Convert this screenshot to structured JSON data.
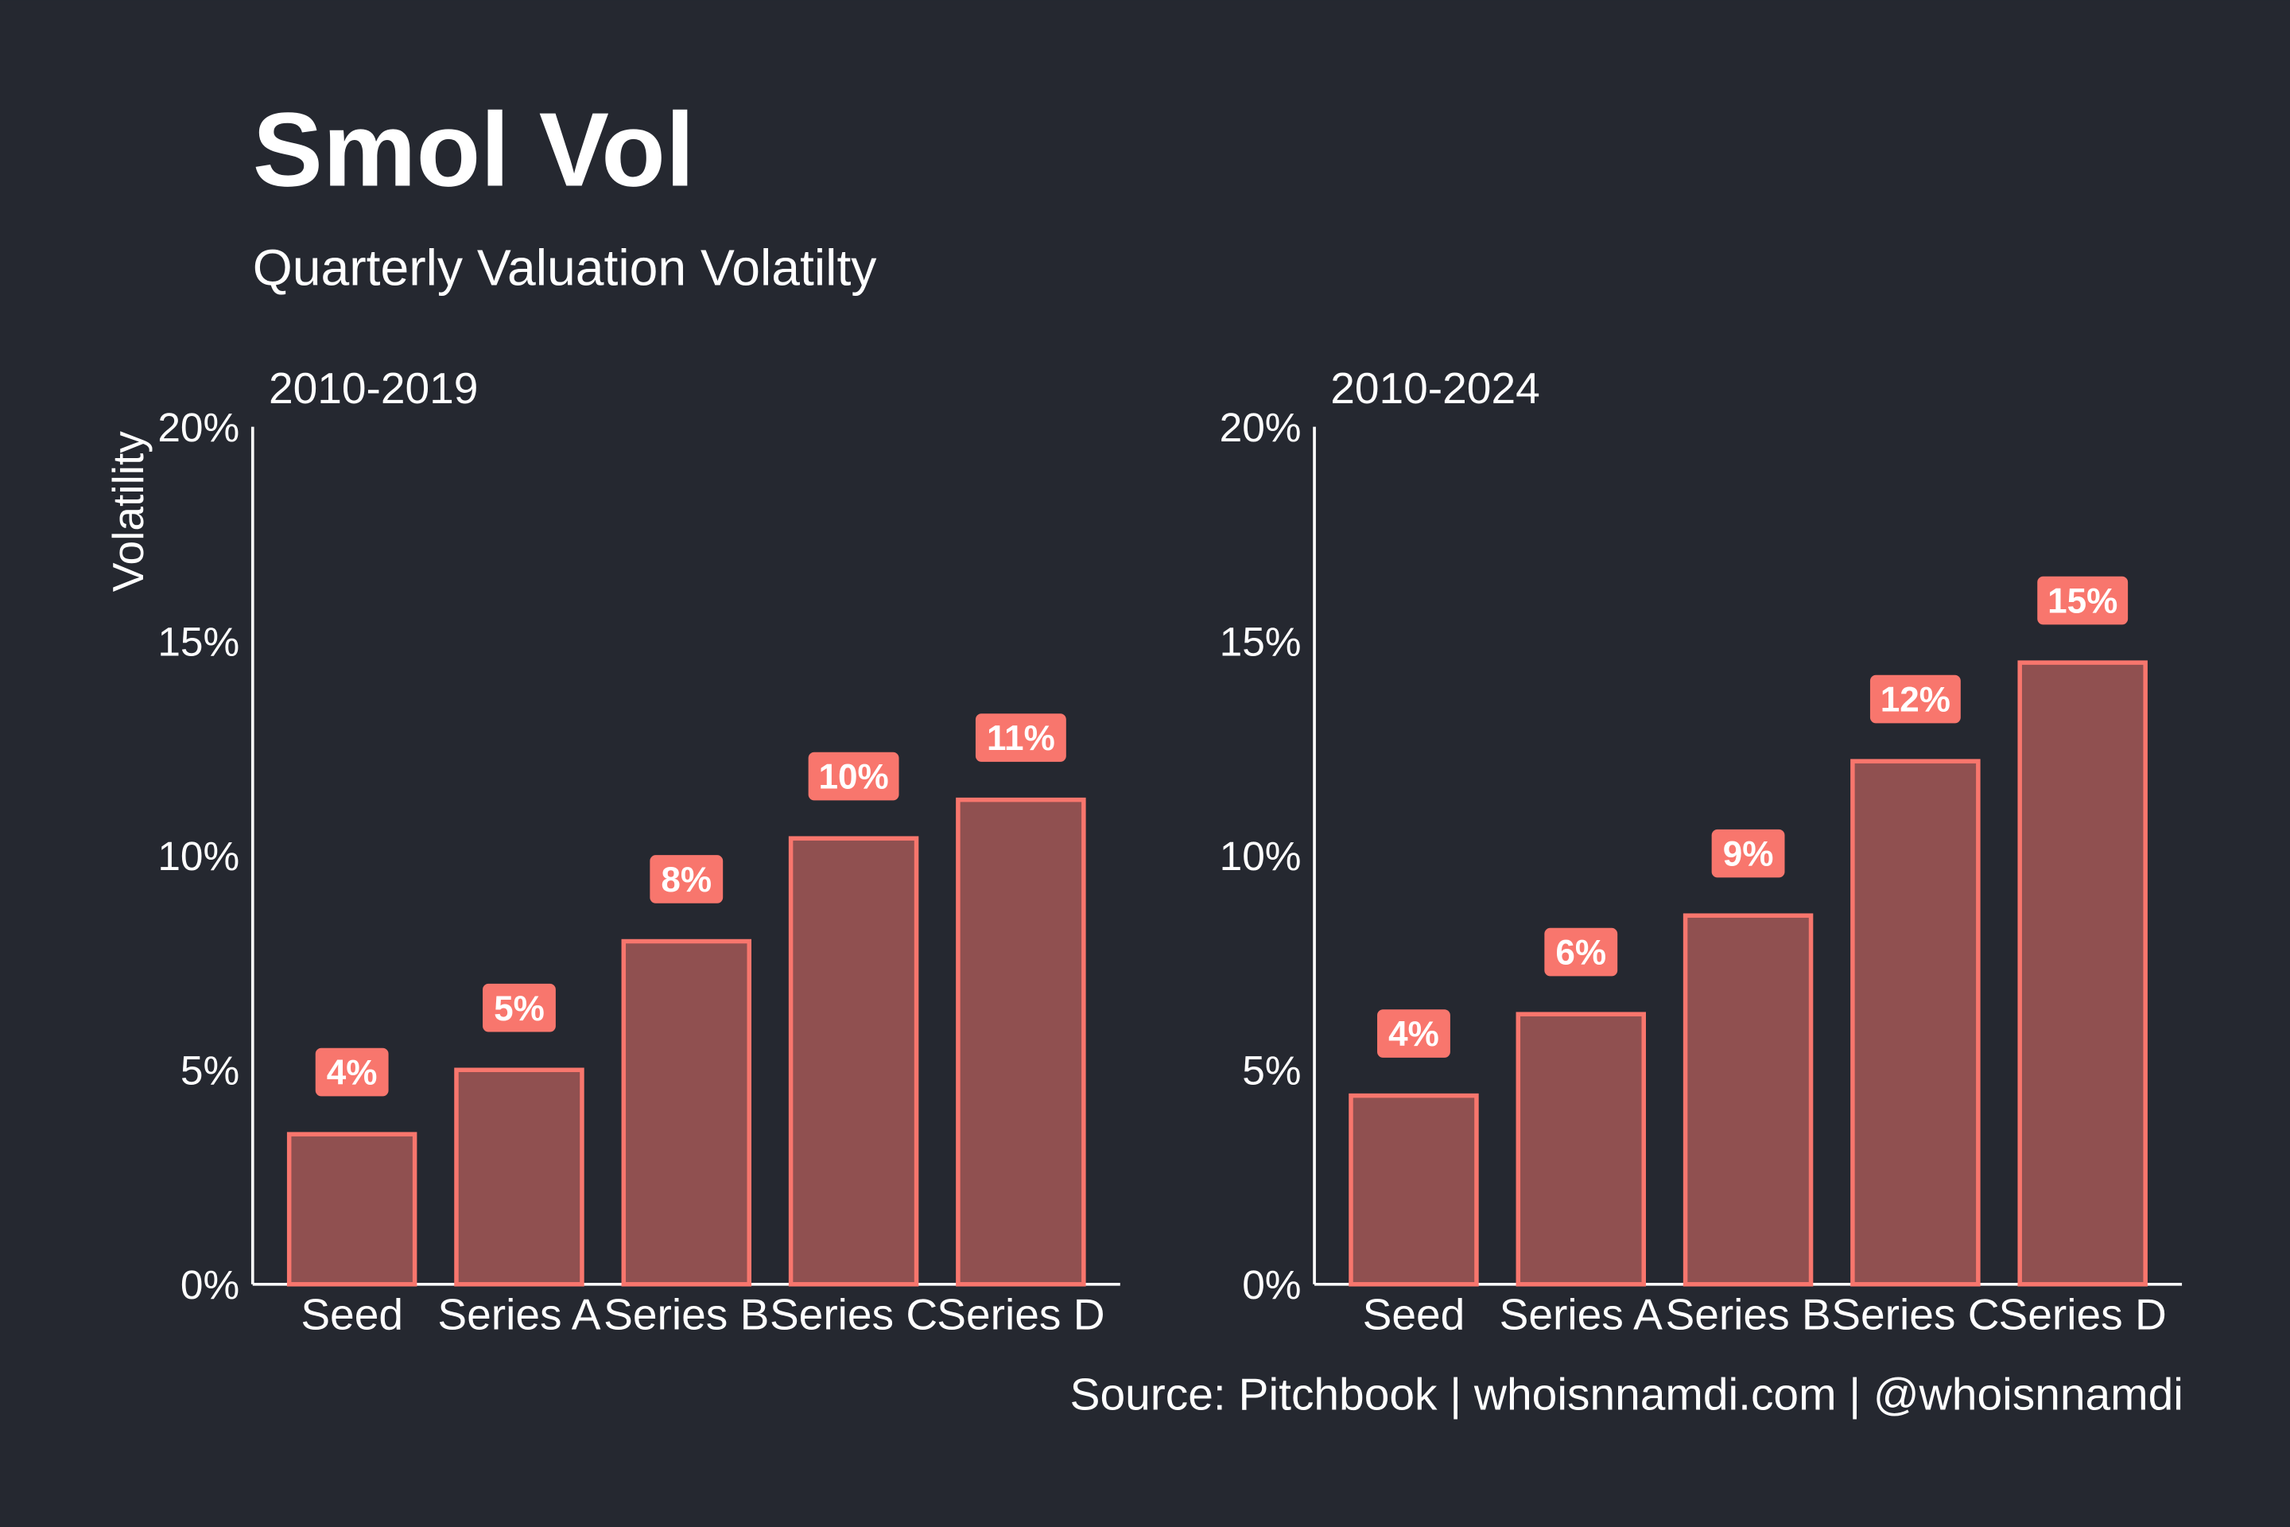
{
  "title": "Smol Vol",
  "subtitle": "Quarterly Valuation Volatilty",
  "source": "Source: Pitchbook | whoisnnamdi.com | @whoisnnamdi",
  "colors": {
    "background": "#252830",
    "bar_fill": "#905050",
    "bar_stroke": "#F8766D",
    "label_bg": "#F8766D",
    "text": "#FFFFFF"
  },
  "chart_data": [
    {
      "type": "bar",
      "title": "2010-2019",
      "ylabel": "Volatility",
      "xlabel": "",
      "ylim": [
        0,
        20
      ],
      "yticks": [
        "0%",
        "5%",
        "10%",
        "15%",
        "20%"
      ],
      "grid": false,
      "categories": [
        "Seed",
        "Series A",
        "Series B",
        "Series C",
        "Series D"
      ],
      "values": [
        3.5,
        5.0,
        8.0,
        10.4,
        11.3
      ],
      "data_labels": [
        "4%",
        "5%",
        "8%",
        "10%",
        "11%"
      ]
    },
    {
      "type": "bar",
      "title": "2010-2024",
      "ylabel": "",
      "xlabel": "",
      "ylim": [
        0,
        20
      ],
      "yticks": [
        "0%",
        "5%",
        "10%",
        "15%",
        "20%"
      ],
      "grid": false,
      "categories": [
        "Seed",
        "Series A",
        "Series B",
        "Series C",
        "Series D"
      ],
      "values": [
        4.4,
        6.3,
        8.6,
        12.2,
        14.5
      ],
      "data_labels": [
        "4%",
        "6%",
        "9%",
        "12%",
        "15%"
      ]
    }
  ]
}
